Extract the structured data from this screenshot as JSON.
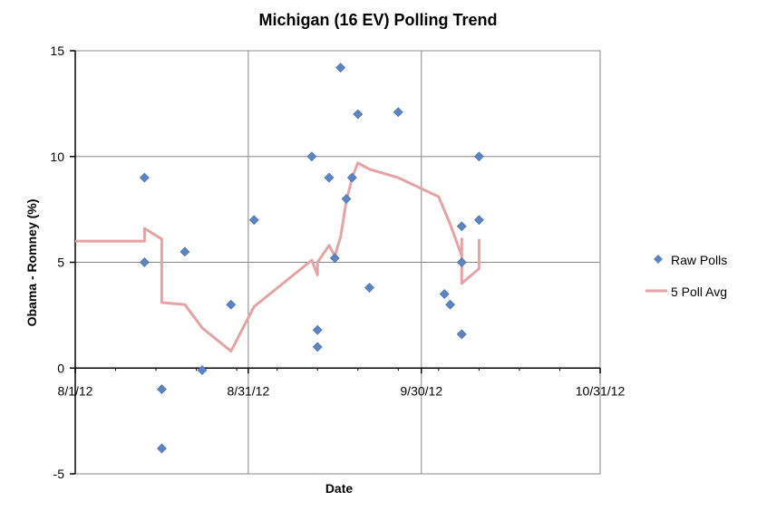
{
  "chart_data": {
    "type": "scatter",
    "title": "Michigan (16 EV) Polling Trend",
    "xlabel": "Date",
    "ylabel": "Obama - Romney (%)",
    "xlim": [
      "2012-08-01",
      "2012-10-31"
    ],
    "ylim": [
      -5,
      15
    ],
    "x_ticks": [
      {
        "date": "2012-08-01",
        "label": "8/1/12"
      },
      {
        "date": "2012-08-31",
        "label": "8/31/12"
      },
      {
        "date": "2012-09-30",
        "label": "9/30/12"
      },
      {
        "date": "2012-10-31",
        "label": "10/31/12"
      }
    ],
    "y_ticks": [
      -5,
      0,
      5,
      10,
      15
    ],
    "grid": true,
    "legend_position": "right",
    "colors": {
      "raw": "#5b84c4",
      "avg": "#e6a3a3"
    },
    "series": [
      {
        "name": "Raw Polls",
        "kind": "scatter",
        "points": [
          {
            "x": "2012-08-13",
            "y": 9
          },
          {
            "x": "2012-08-13",
            "y": 5
          },
          {
            "x": "2012-08-16",
            "y": -1
          },
          {
            "x": "2012-08-16",
            "y": -3.8
          },
          {
            "x": "2012-08-20",
            "y": 5.5
          },
          {
            "x": "2012-08-23",
            "y": -0.1
          },
          {
            "x": "2012-08-28",
            "y": 3
          },
          {
            "x": "2012-09-01",
            "y": 7
          },
          {
            "x": "2012-09-11",
            "y": 10
          },
          {
            "x": "2012-09-12",
            "y": 1.8
          },
          {
            "x": "2012-09-12",
            "y": 1
          },
          {
            "x": "2012-09-14",
            "y": 9
          },
          {
            "x": "2012-09-15",
            "y": 5.2
          },
          {
            "x": "2012-09-16",
            "y": 14.2
          },
          {
            "x": "2012-09-17",
            "y": 8
          },
          {
            "x": "2012-09-18",
            "y": 9
          },
          {
            "x": "2012-09-19",
            "y": 12
          },
          {
            "x": "2012-09-21",
            "y": 3.8
          },
          {
            "x": "2012-09-26",
            "y": 12.1
          },
          {
            "x": "2012-10-04",
            "y": 3.5
          },
          {
            "x": "2012-10-05",
            "y": 3
          },
          {
            "x": "2012-10-07",
            "y": 6.7
          },
          {
            "x": "2012-10-07",
            "y": 5
          },
          {
            "x": "2012-10-07",
            "y": 1.6
          },
          {
            "x": "2012-10-10",
            "y": 10
          },
          {
            "x": "2012-10-10",
            "y": 7
          }
        ]
      },
      {
        "name": "5 Poll Avg",
        "kind": "line",
        "points": [
          {
            "x": "2012-08-01",
            "y": 6.0
          },
          {
            "x": "2012-08-13",
            "y": 6.0
          },
          {
            "x": "2012-08-13",
            "y": 6.6
          },
          {
            "x": "2012-08-16",
            "y": 6.1
          },
          {
            "x": "2012-08-16",
            "y": 3.1
          },
          {
            "x": "2012-08-20",
            "y": 3.0
          },
          {
            "x": "2012-08-23",
            "y": 1.9
          },
          {
            "x": "2012-08-28",
            "y": 0.8
          },
          {
            "x": "2012-09-01",
            "y": 2.9
          },
          {
            "x": "2012-09-11",
            "y": 5.1
          },
          {
            "x": "2012-09-12",
            "y": 4.4
          },
          {
            "x": "2012-09-12",
            "y": 5.0
          },
          {
            "x": "2012-09-14",
            "y": 5.8
          },
          {
            "x": "2012-09-15",
            "y": 5.3
          },
          {
            "x": "2012-09-16",
            "y": 6.2
          },
          {
            "x": "2012-09-17",
            "y": 7.9
          },
          {
            "x": "2012-09-18",
            "y": 9.0
          },
          {
            "x": "2012-09-19",
            "y": 9.7
          },
          {
            "x": "2012-09-21",
            "y": 9.4
          },
          {
            "x": "2012-09-26",
            "y": 9.0
          },
          {
            "x": "2012-10-03",
            "y": 8.1
          },
          {
            "x": "2012-10-05",
            "y": 6.8
          },
          {
            "x": "2012-10-07",
            "y": 5.3
          },
          {
            "x": "2012-10-07",
            "y": 6.1
          },
          {
            "x": "2012-10-07",
            "y": 4.0
          },
          {
            "x": "2012-10-10",
            "y": 4.7
          },
          {
            "x": "2012-10-10",
            "y": 6.1
          }
        ]
      }
    ]
  }
}
